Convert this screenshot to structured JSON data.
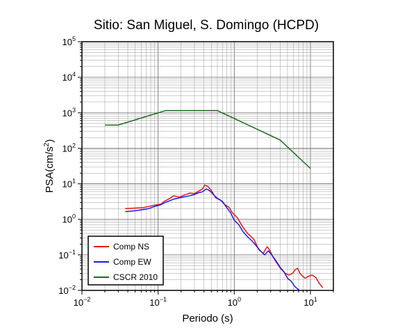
{
  "chart_data": {
    "type": "line",
    "title": "Sitio: San Miguel, S. Domingo (HCPD)",
    "xlabel": "Periodo (s)",
    "ylabel_main": "PSA(cm/s",
    "ylabel_sup": "2",
    "ylabel_close": ")",
    "x_scale": "log",
    "y_scale": "log",
    "xlim": [
      0.01,
      20
    ],
    "ylim": [
      0.01,
      100000
    ],
    "grid": true,
    "legend_position": "bottom-left",
    "x_ticks": [
      {
        "value": 0.01,
        "base": "10",
        "exp": "−2"
      },
      {
        "value": 0.1,
        "base": "10",
        "exp": "−1"
      },
      {
        "value": 1,
        "base": "10",
        "exp": "0"
      },
      {
        "value": 10,
        "base": "10",
        "exp": "1"
      }
    ],
    "y_ticks": [
      {
        "value": 0.01,
        "base": "10",
        "exp": "−2"
      },
      {
        "value": 0.1,
        "base": "10",
        "exp": "−1"
      },
      {
        "value": 1,
        "base": "10",
        "exp": "0"
      },
      {
        "value": 10,
        "base": "10",
        "exp": "1"
      },
      {
        "value": 100,
        "base": "10",
        "exp": "2"
      },
      {
        "value": 1000,
        "base": "10",
        "exp": "3"
      },
      {
        "value": 10000,
        "base": "10",
        "exp": "4"
      },
      {
        "value": 100000,
        "base": "10",
        "exp": "5"
      }
    ],
    "series": [
      {
        "name": "Comp NS",
        "color": "#ee1111",
        "points": [
          [
            0.037,
            2.0
          ],
          [
            0.045,
            2.05
          ],
          [
            0.055,
            2.1
          ],
          [
            0.065,
            2.15
          ],
          [
            0.075,
            2.3
          ],
          [
            0.09,
            2.5
          ],
          [
            0.11,
            2.7
          ],
          [
            0.12,
            3.2
          ],
          [
            0.14,
            3.8
          ],
          [
            0.16,
            4.6
          ],
          [
            0.19,
            4.2
          ],
          [
            0.22,
            4.8
          ],
          [
            0.26,
            5.5
          ],
          [
            0.3,
            5.3
          ],
          [
            0.34,
            6.2
          ],
          [
            0.38,
            7.0
          ],
          [
            0.41,
            9.2
          ],
          [
            0.45,
            8.5
          ],
          [
            0.5,
            6.5
          ],
          [
            0.57,
            4.0
          ],
          [
            0.65,
            3.6
          ],
          [
            0.75,
            2.6
          ],
          [
            0.85,
            2.2
          ],
          [
            0.95,
            1.5
          ],
          [
            1.1,
            1.1
          ],
          [
            1.3,
            0.6
          ],
          [
            1.5,
            0.4
          ],
          [
            1.8,
            0.28
          ],
          [
            2.1,
            0.14
          ],
          [
            2.4,
            0.11
          ],
          [
            2.7,
            0.17
          ],
          [
            2.9,
            0.14
          ],
          [
            3.2,
            0.09
          ],
          [
            3.6,
            0.06
          ],
          [
            4.1,
            0.04
          ],
          [
            4.7,
            0.03
          ],
          [
            5.2,
            0.027
          ],
          [
            5.8,
            0.03
          ],
          [
            6.3,
            0.038
          ],
          [
            6.8,
            0.042
          ],
          [
            7.3,
            0.03
          ],
          [
            7.9,
            0.025
          ],
          [
            8.5,
            0.022
          ],
          [
            9.5,
            0.025
          ],
          [
            10.5,
            0.027
          ],
          [
            11.8,
            0.023
          ],
          [
            13,
            0.016
          ],
          [
            14.5,
            0.012
          ]
        ]
      },
      {
        "name": "Comp EW",
        "color": "#1a1aee",
        "points": [
          [
            0.037,
            1.65
          ],
          [
            0.045,
            1.7
          ],
          [
            0.055,
            1.8
          ],
          [
            0.065,
            1.9
          ],
          [
            0.075,
            2.0
          ],
          [
            0.09,
            2.3
          ],
          [
            0.11,
            2.6
          ],
          [
            0.12,
            2.9
          ],
          [
            0.14,
            3.3
          ],
          [
            0.16,
            3.7
          ],
          [
            0.19,
            4.0
          ],
          [
            0.22,
            4.3
          ],
          [
            0.26,
            4.6
          ],
          [
            0.3,
            5.0
          ],
          [
            0.34,
            5.6
          ],
          [
            0.38,
            5.9
          ],
          [
            0.43,
            7.2
          ],
          [
            0.48,
            6.3
          ],
          [
            0.55,
            4.6
          ],
          [
            0.62,
            3.7
          ],
          [
            0.7,
            3.2
          ],
          [
            0.8,
            2.1
          ],
          [
            0.9,
            1.5
          ],
          [
            1.0,
            0.95
          ],
          [
            1.15,
            0.7
          ],
          [
            1.3,
            0.45
          ],
          [
            1.5,
            0.32
          ],
          [
            1.7,
            0.25
          ],
          [
            1.9,
            0.19
          ],
          [
            2.2,
            0.13
          ],
          [
            2.5,
            0.1
          ],
          [
            2.8,
            0.13
          ],
          [
            3.1,
            0.1
          ],
          [
            3.5,
            0.07
          ],
          [
            4.0,
            0.045
          ],
          [
            4.5,
            0.033
          ],
          [
            5.0,
            0.022
          ],
          [
            5.6,
            0.018
          ],
          [
            6.2,
            0.013
          ],
          [
            6.8,
            0.011
          ],
          [
            7.2,
            0.01
          ]
        ]
      },
      {
        "name": "CSCR 2010",
        "color": "#1a6a1a",
        "points": [
          [
            0.02,
            450
          ],
          [
            0.03,
            450
          ],
          [
            0.125,
            1150
          ],
          [
            0.6,
            1150
          ],
          [
            4.0,
            170
          ],
          [
            10.0,
            27
          ]
        ]
      }
    ]
  }
}
